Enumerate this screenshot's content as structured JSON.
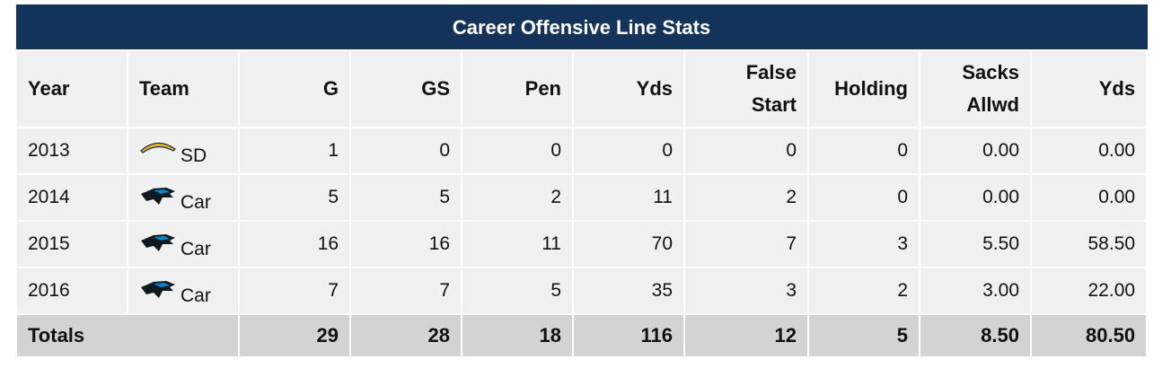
{
  "table": {
    "title": "Career Offensive Line Stats",
    "headers": {
      "year": "Year",
      "team": "Team",
      "g": "G",
      "gs": "GS",
      "pen": "Pen",
      "yds": "Yds",
      "false_start_1": "False",
      "false_start_2": "Start",
      "holding": "Holding",
      "sacks_1": "Sacks",
      "sacks_2": "Allwd",
      "sack_yds": "Yds"
    },
    "rows": [
      {
        "year": "2013",
        "team": "SD",
        "logo": "chargers-bolt-icon",
        "g": "1",
        "gs": "0",
        "pen": "0",
        "yds": "0",
        "false_start": "0",
        "holding": "0",
        "sacks_allwd": "0.00",
        "sack_yds": "0.00"
      },
      {
        "year": "2014",
        "team": "Car",
        "logo": "panthers-icon",
        "g": "5",
        "gs": "5",
        "pen": "2",
        "yds": "11",
        "false_start": "2",
        "holding": "0",
        "sacks_allwd": "0.00",
        "sack_yds": "0.00"
      },
      {
        "year": "2015",
        "team": "Car",
        "logo": "panthers-icon",
        "g": "16",
        "gs": "16",
        "pen": "11",
        "yds": "70",
        "false_start": "7",
        "holding": "3",
        "sacks_allwd": "5.50",
        "sack_yds": "58.50"
      },
      {
        "year": "2016",
        "team": "Car",
        "logo": "panthers-icon",
        "g": "7",
        "gs": "7",
        "pen": "5",
        "yds": "35",
        "false_start": "3",
        "holding": "2",
        "sacks_allwd": "3.00",
        "sack_yds": "22.00"
      }
    ],
    "totals": {
      "label": "Totals",
      "g": "29",
      "gs": "28",
      "pen": "18",
      "yds": "116",
      "false_start": "12",
      "holding": "5",
      "sacks_allwd": "8.50",
      "sack_yds": "80.50"
    },
    "colors": {
      "title_bg": "#13335a",
      "cell_bg": "#f0f0f0",
      "totals_bg": "#d3d3d3",
      "chargers_gold": "#f4b81f",
      "chargers_navy": "#0f2a4a",
      "panthers_blue": "#0085ca",
      "panthers_black": "#101820"
    }
  }
}
